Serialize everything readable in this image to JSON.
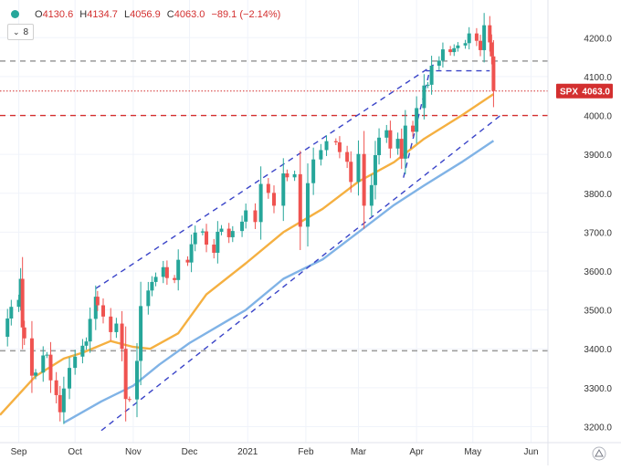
{
  "header": {
    "ohlc": [
      {
        "label": "O",
        "value": "4130.6"
      },
      {
        "label": "H",
        "value": "4134.7"
      },
      {
        "label": "L",
        "value": "4056.9"
      },
      {
        "label": "C",
        "value": "4063.0"
      },
      {
        "label": "",
        "value": "−89.1 (−2.14%)"
      }
    ],
    "indicator_count": "8"
  },
  "chart_data": {
    "type": "candlestick",
    "symbol": "SPX",
    "last_price": "4063.0",
    "y_range": [
      3180,
      4250
    ],
    "x_range": [
      "2020-08-22",
      "2021-06-10"
    ],
    "x_ticks": [
      {
        "label": "Sep",
        "date": "2020-09-01"
      },
      {
        "label": "Oct",
        "date": "2020-10-01"
      },
      {
        "label": "Nov",
        "date": "2020-11-01"
      },
      {
        "label": "Dec",
        "date": "2020-12-01"
      },
      {
        "label": "2021",
        "date": "2021-01-01"
      },
      {
        "label": "Feb",
        "date": "2021-02-01"
      },
      {
        "label": "Mar",
        "date": "2021-03-01"
      },
      {
        "label": "Apr",
        "date": "2021-04-01"
      },
      {
        "label": "May",
        "date": "2021-05-01"
      },
      {
        "label": "Jun",
        "date": "2021-06-01"
      }
    ],
    "y_ticks": [
      3200,
      3300,
      3400,
      3500,
      3600,
      3700,
      3800,
      3900,
      4000,
      4100,
      4200
    ],
    "closes": [
      [
        "2020-08-24",
        3431
      ],
      [
        "2020-08-26",
        3478
      ],
      [
        "2020-08-28",
        3508
      ],
      [
        "2020-09-01",
        3526
      ],
      [
        "2020-09-02",
        3580
      ],
      [
        "2020-09-03",
        3455
      ],
      [
        "2020-09-04",
        3427
      ],
      [
        "2020-09-08",
        3331
      ],
      [
        "2020-09-10",
        3339
      ],
      [
        "2020-09-14",
        3383
      ],
      [
        "2020-09-16",
        3385
      ],
      [
        "2020-09-18",
        3319
      ],
      [
        "2020-09-21",
        3281
      ],
      [
        "2020-09-23",
        3237
      ],
      [
        "2020-09-25",
        3298
      ],
      [
        "2020-09-28",
        3351
      ],
      [
        "2020-10-01",
        3380
      ],
      [
        "2020-10-05",
        3408
      ],
      [
        "2020-10-07",
        3419
      ],
      [
        "2020-10-09",
        3477
      ],
      [
        "2020-10-12",
        3534
      ],
      [
        "2020-10-13",
        3512
      ],
      [
        "2020-10-16",
        3483
      ],
      [
        "2020-10-20",
        3443
      ],
      [
        "2020-10-23",
        3465
      ],
      [
        "2020-10-26",
        3400
      ],
      [
        "2020-10-28",
        3271
      ],
      [
        "2020-10-30",
        3270
      ],
      [
        "2020-11-03",
        3369
      ],
      [
        "2020-11-05",
        3510
      ],
      [
        "2020-11-09",
        3550
      ],
      [
        "2020-11-11",
        3572
      ],
      [
        "2020-11-13",
        3585
      ],
      [
        "2020-11-17",
        3610
      ],
      [
        "2020-11-19",
        3582
      ],
      [
        "2020-11-23",
        3577
      ],
      [
        "2020-11-25",
        3629
      ],
      [
        "2020-11-30",
        3622
      ],
      [
        "2020-12-02",
        3669
      ],
      [
        "2020-12-04",
        3699
      ],
      [
        "2020-12-08",
        3702
      ],
      [
        "2020-12-10",
        3668
      ],
      [
        "2020-12-14",
        3647
      ],
      [
        "2020-12-16",
        3701
      ],
      [
        "2020-12-18",
        3709
      ],
      [
        "2020-12-22",
        3687
      ],
      [
        "2020-12-24",
        3703
      ],
      [
        "2020-12-29",
        3727
      ],
      [
        "2020-12-31",
        3756
      ],
      [
        "2021-01-05",
        3726
      ],
      [
        "2021-01-08",
        3824
      ],
      [
        "2021-01-12",
        3801
      ],
      [
        "2021-01-15",
        3768
      ],
      [
        "2021-01-20",
        3851
      ],
      [
        "2021-01-22",
        3841
      ],
      [
        "2021-01-26",
        3849
      ],
      [
        "2021-01-29",
        3714
      ],
      [
        "2021-02-02",
        3826
      ],
      [
        "2021-02-05",
        3887
      ],
      [
        "2021-02-09",
        3911
      ],
      [
        "2021-02-12",
        3934
      ],
      [
        "2021-02-17",
        3931
      ],
      [
        "2021-02-19",
        3906
      ],
      [
        "2021-02-23",
        3881
      ],
      [
        "2021-02-25",
        3829
      ],
      [
        "2021-03-01",
        3901
      ],
      [
        "2021-03-04",
        3768
      ],
      [
        "2021-03-08",
        3821
      ],
      [
        "2021-03-10",
        3898
      ],
      [
        "2021-03-12",
        3943
      ],
      [
        "2021-03-16",
        3962
      ],
      [
        "2021-03-18",
        3915
      ],
      [
        "2021-03-22",
        3940
      ],
      [
        "2021-03-24",
        3889
      ],
      [
        "2021-03-26",
        3974
      ],
      [
        "2021-03-30",
        3958
      ],
      [
        "2021-04-01",
        4019
      ],
      [
        "2021-04-05",
        4077
      ],
      [
        "2021-04-07",
        4079
      ],
      [
        "2021-04-09",
        4128
      ],
      [
        "2021-04-13",
        4141
      ],
      [
        "2021-04-15",
        4170
      ],
      [
        "2021-04-19",
        4163
      ],
      [
        "2021-04-21",
        4173
      ],
      [
        "2021-04-23",
        4180
      ],
      [
        "2021-04-27",
        4186
      ],
      [
        "2021-04-29",
        4211
      ],
      [
        "2021-05-03",
        4192
      ],
      [
        "2021-05-05",
        4168
      ],
      [
        "2021-05-07",
        4232
      ],
      [
        "2021-05-10",
        4188
      ],
      [
        "2021-05-11",
        4152
      ],
      [
        "2021-05-12",
        4063
      ]
    ],
    "moving_averages": [
      {
        "color": "#f5b041",
        "points": [
          [
            "2020-08-22",
            3230
          ],
          [
            "2020-09-10",
            3330
          ],
          [
            "2020-09-25",
            3375
          ],
          [
            "2020-10-05",
            3390
          ],
          [
            "2020-10-20",
            3420
          ],
          [
            "2020-11-01",
            3405
          ],
          [
            "2020-11-10",
            3400
          ],
          [
            "2020-11-25",
            3440
          ],
          [
            "2020-12-10",
            3540
          ],
          [
            "2020-12-31",
            3620
          ],
          [
            "2021-01-20",
            3700
          ],
          [
            "2021-02-10",
            3760
          ],
          [
            "2021-03-01",
            3830
          ],
          [
            "2021-03-20",
            3880
          ],
          [
            "2021-04-05",
            3940
          ],
          [
            "2021-04-25",
            4000
          ],
          [
            "2021-05-12",
            4055
          ]
        ]
      },
      {
        "color": "#80b3e6",
        "points": [
          [
            "2020-09-25",
            3210
          ],
          [
            "2020-10-15",
            3265
          ],
          [
            "2020-11-01",
            3305
          ],
          [
            "2020-11-15",
            3360
          ],
          [
            "2020-12-01",
            3415
          ],
          [
            "2020-12-31",
            3500
          ],
          [
            "2021-01-20",
            3580
          ],
          [
            "2021-02-10",
            3630
          ],
          [
            "2021-03-01",
            3700
          ],
          [
            "2021-03-20",
            3770
          ],
          [
            "2021-04-05",
            3820
          ],
          [
            "2021-04-25",
            3880
          ],
          [
            "2021-05-12",
            3935
          ]
        ]
      }
    ],
    "horizontal_lines": [
      {
        "value": 4140,
        "color": "#999999",
        "style": "dashed",
        "from": "2020-08-22"
      },
      {
        "value": 4000,
        "color": "#d32f2f",
        "style": "dashed",
        "from": "2020-08-22"
      },
      {
        "value": 3395,
        "color": "#999999",
        "style": "dashed",
        "from": "2020-08-22"
      },
      {
        "value": 4063,
        "color": "#d32f2f",
        "style": "dotted",
        "from": "2020-08-22"
      }
    ],
    "trend_lines": [
      {
        "color": "#3a44c8",
        "points": [
          [
            "2020-10-12",
            3555
          ],
          [
            "2021-04-10",
            4130
          ]
        ]
      },
      {
        "color": "#3a44c8",
        "points": [
          [
            "2020-10-15",
            3190
          ],
          [
            "2021-05-17",
            4005
          ]
        ]
      },
      {
        "color": "#3a44c8",
        "points": [
          [
            "2021-03-25",
            3840
          ],
          [
            "2021-04-08",
            4115
          ]
        ]
      },
      {
        "color": "#3a44c8",
        "points": [
          [
            "2021-04-06",
            4115
          ],
          [
            "2021-05-10",
            4115
          ]
        ]
      }
    ]
  }
}
